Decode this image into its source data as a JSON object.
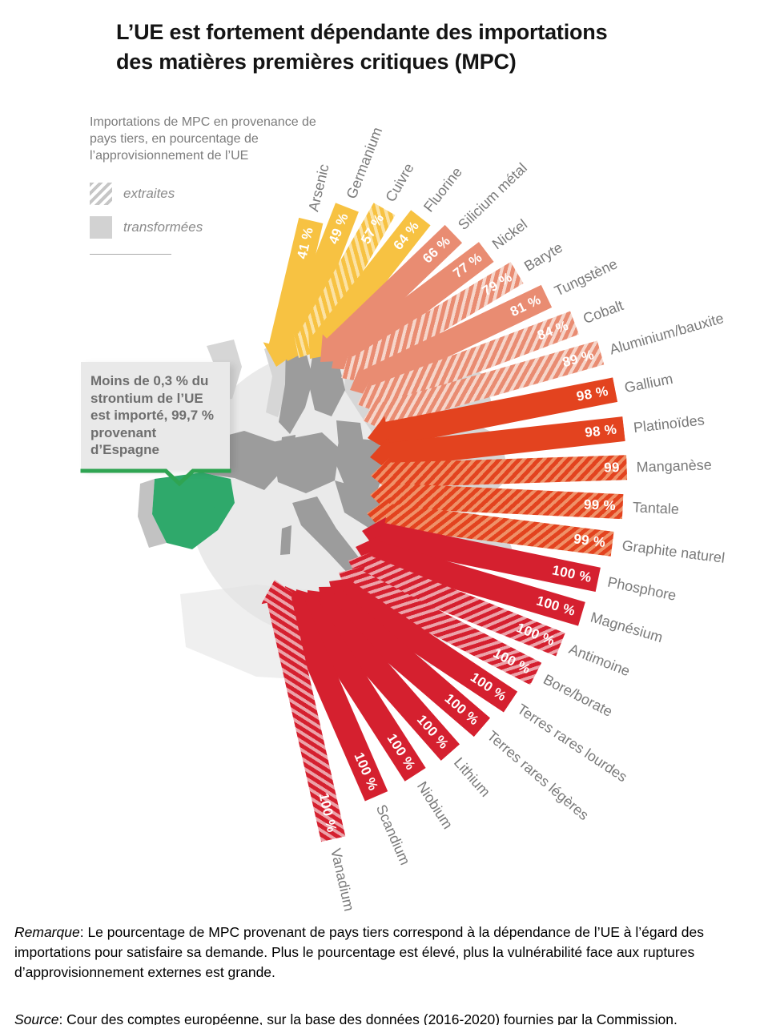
{
  "title": {
    "line1": "L’UE est fortement dépendante des importations",
    "line2": "des matières premières critiques (MPC)"
  },
  "legend": {
    "caption_lines": [
      "Importations de MPC en provenance de",
      "pays tiers, en pourcentage de",
      "l’approvisionnement de l’UE"
    ],
    "items": [
      {
        "label": "extraites",
        "pattern": "hatched"
      },
      {
        "label": "transformées",
        "pattern": "solid"
      }
    ]
  },
  "annotation": {
    "text": "Moins de 0,3 % du strontium de l’UE est importé, 99,7 % provenant d’Espagne",
    "accent_color": "#2FA452"
  },
  "map": {
    "highlight_country": "Espagne",
    "highlight_color": "#2FA96B",
    "eu_color": "#9C9C9C",
    "non_eu_color": "#D6D6D6",
    "globe_color": "#EAEAEA"
  },
  "chart_data": {
    "type": "bar",
    "variant": "radial-arrow-fan",
    "unit": "%",
    "title": "Importations de MPC en provenance de pays tiers, en pourcentage de l’approvisionnement de l’UE",
    "legend_position": "top-left",
    "legend": [
      {
        "label": "extraites",
        "pattern": "hatched"
      },
      {
        "label": "transformées",
        "pattern": "solid"
      }
    ],
    "items": [
      {
        "name": "Arsenic",
        "value": 41,
        "label": "41 %",
        "stage": "transformées",
        "hatched": false,
        "color": "#F7C242"
      },
      {
        "name": "Germanium",
        "value": 49,
        "label": "49 %",
        "stage": "transformées",
        "hatched": false,
        "color": "#F7C242"
      },
      {
        "name": "Cuivre",
        "value": 57,
        "label": "57 %",
        "stage": "extraites",
        "hatched": true,
        "color": "#F7C242"
      },
      {
        "name": "Fluorine",
        "value": 64,
        "label": "64 %",
        "stage": "transformées",
        "hatched": false,
        "color": "#F7C242"
      },
      {
        "name": "Silicium métal",
        "value": 66,
        "label": "66 %",
        "stage": "transformées",
        "hatched": false,
        "color": "#E98C72"
      },
      {
        "name": "Nickel",
        "value": 77,
        "label": "77 %",
        "stage": "transformées",
        "hatched": false,
        "color": "#E98C72"
      },
      {
        "name": "Baryte",
        "value": 79,
        "label": "79 %",
        "stage": "extraites",
        "hatched": true,
        "color": "#E98C72"
      },
      {
        "name": "Tungstène",
        "value": 81,
        "label": "81 %",
        "stage": "transformées",
        "hatched": false,
        "color": "#E98C72"
      },
      {
        "name": "Cobalt",
        "value": 84,
        "label": "84 %",
        "stage": "extraites",
        "hatched": true,
        "color": "#E98C72"
      },
      {
        "name": "Aluminium/bauxite",
        "value": 89,
        "label": "89 %",
        "stage": "extraites",
        "hatched": true,
        "color": "#E98C72"
      },
      {
        "name": "Gallium",
        "value": 98,
        "label": "98 %",
        "stage": "transformées",
        "hatched": false,
        "color": "#E3431F"
      },
      {
        "name": "Platinoïdes",
        "value": 98,
        "label": "98 %",
        "stage": "transformées",
        "hatched": false,
        "color": "#E3431F"
      },
      {
        "name": "Manganèse",
        "value": 99,
        "label": "99",
        "stage": "extraites",
        "hatched": true,
        "color": "#E3431F"
      },
      {
        "name": "Tantale",
        "value": 99,
        "label": "99 %",
        "stage": "extraites",
        "hatched": true,
        "color": "#E3431F"
      },
      {
        "name": "Graphite naturel",
        "value": 99,
        "label": "99 %",
        "stage": "extraites",
        "hatched": true,
        "color": "#E3431F"
      },
      {
        "name": "Phosphore",
        "value": 100,
        "label": "100 %",
        "stage": "transformées",
        "hatched": false,
        "color": "#D5202F"
      },
      {
        "name": "Magnésium",
        "value": 100,
        "label": "100 %",
        "stage": "transformées",
        "hatched": false,
        "color": "#D5202F"
      },
      {
        "name": "Antimoine",
        "value": 100,
        "label": "100 %",
        "stage": "extraites",
        "hatched": true,
        "color": "#D5202F"
      },
      {
        "name": "Bore/borate",
        "value": 100,
        "label": "100 %",
        "stage": "extraites",
        "hatched": true,
        "color": "#D5202F"
      },
      {
        "name": "Terres rares lourdes",
        "value": 100,
        "label": "100 %",
        "stage": "transformées",
        "hatched": false,
        "color": "#D5202F"
      },
      {
        "name": "Terres rares légères",
        "value": 100,
        "label": "100 %",
        "stage": "transformées",
        "hatched": false,
        "color": "#D5202F"
      },
      {
        "name": "Lithium",
        "value": 100,
        "label": "100 %",
        "stage": "transformées",
        "hatched": false,
        "color": "#D5202F"
      },
      {
        "name": "Niobium",
        "value": 100,
        "label": "100 %",
        "stage": "transformées",
        "hatched": false,
        "color": "#D5202F"
      },
      {
        "name": "Scandium",
        "value": 100,
        "label": "100 %",
        "stage": "transformées",
        "hatched": false,
        "color": "#D5202F"
      },
      {
        "name": "Vanadium",
        "value": 100,
        "label": "100 %",
        "stage": "extraites",
        "hatched": true,
        "color": "#D5202F"
      }
    ]
  },
  "footer": {
    "remarque_label": "Remarque",
    "remarque_text": ": Le pourcentage de MPC provenant de pays tiers correspond à la dépendance de l’UE à l’égard des importations pour satisfaire sa demande. Plus le pourcentage est élevé, plus la vulnérabilité face aux ruptures d’approvisionnement externes est grande.",
    "source_label": "Source",
    "source_text": ": Cour des comptes européenne, sur la base des données (2016-2020) fournies par la Commission."
  }
}
